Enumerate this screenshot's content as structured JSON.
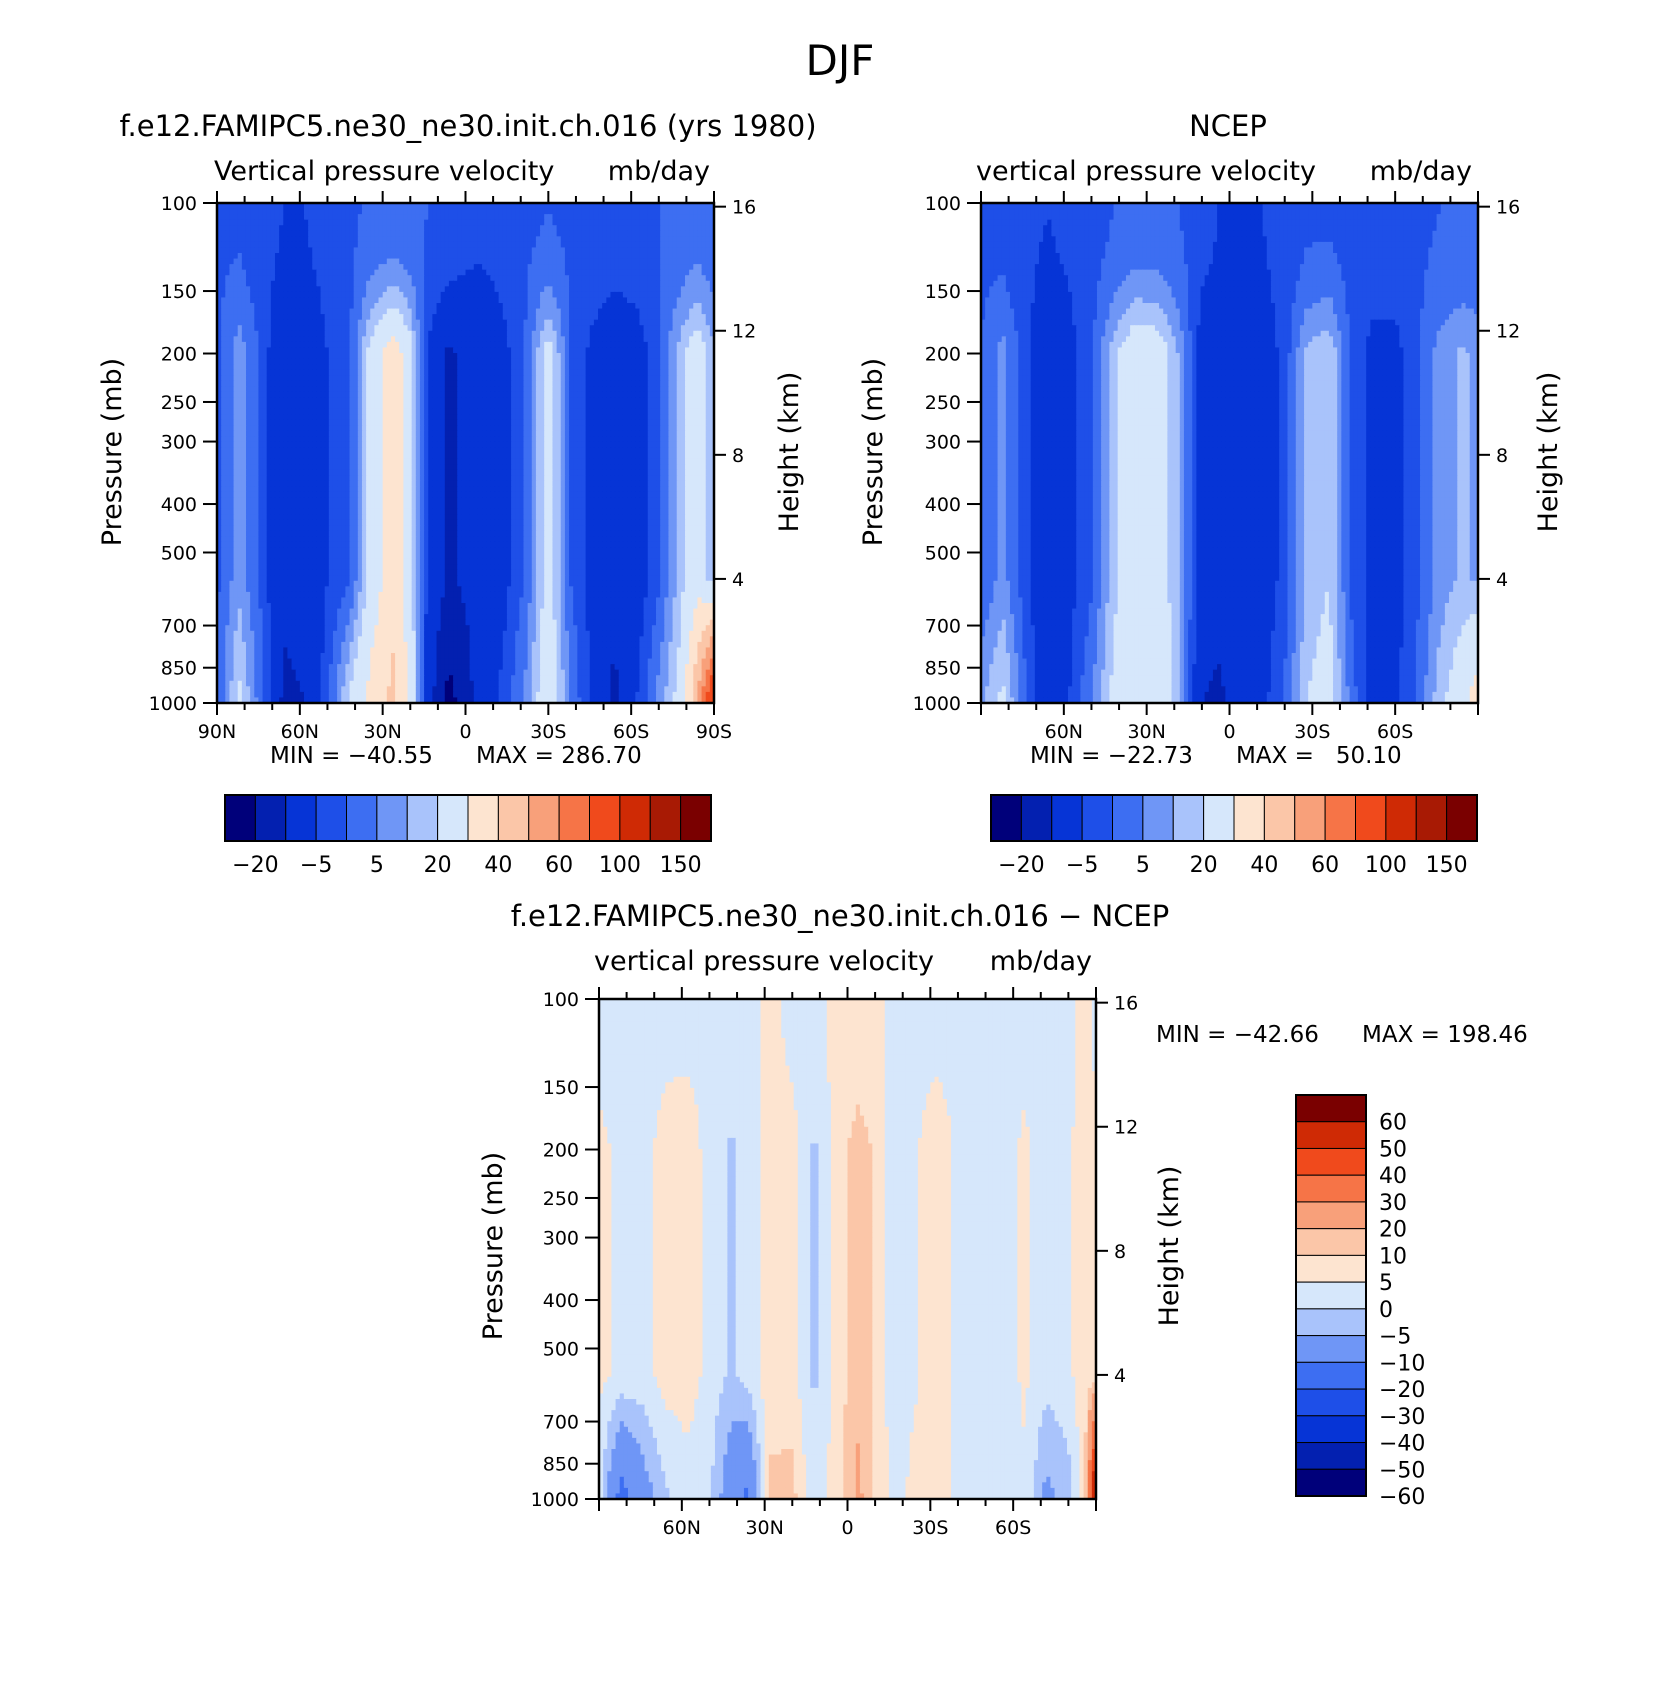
{
  "figure": {
    "title": "DJF",
    "colors": {
      "abs_palette": [
        "#00007a",
        "#0320b0",
        "#0634d6",
        "#1e4fe8",
        "#3d6ef2",
        "#6f96f6",
        "#a9c3fb",
        "#d6e7fb",
        "#fde4d0",
        "#fbc6a8",
        "#f8a07a",
        "#f67447",
        "#f04a1c",
        "#cf2a05",
        "#a81a04",
        "#7a0000"
      ],
      "diff_palette": [
        "#00007a",
        "#0320b0",
        "#0634d6",
        "#1e4fe8",
        "#3d6ef2",
        "#6f96f6",
        "#a9c3fb",
        "#d6e7fb",
        "#fde4d0",
        "#fbc6a8",
        "#f8a07a",
        "#f67447",
        "#f04a1c",
        "#cf2a05",
        "#7a0000"
      ]
    }
  },
  "chart_data": [
    {
      "type": "heatmap",
      "title": "f.e12.FAMIPC5.ne30_ne30.init.ch.016 (yrs 1980)",
      "subtitle_left": "Vertical pressure velocity",
      "subtitle_right": "mb/day",
      "ylabel": "Pressure (mb)",
      "y2label": "Height (km)",
      "x_ticks": [
        "90N",
        "60N",
        "30N",
        "0",
        "30S",
        "60S",
        "90S"
      ],
      "x_range": [
        90,
        -90
      ],
      "y_ticks": [
        "100",
        "150",
        "200",
        "250",
        "300",
        "400",
        "500",
        "700",
        "850",
        "1000"
      ],
      "y_range": [
        1000,
        100
      ],
      "y_scale": "log",
      "y2_ticks": [
        "16",
        "12",
        "8",
        "4"
      ],
      "min_label": "MIN = −40.55",
      "max_label": "MAX = 286.70",
      "min": -40.55,
      "max": 286.7,
      "colorbar_orientation": "horizontal",
      "colorbar_labels": [
        "−20",
        "−5",
        "5",
        "20",
        "40",
        "60",
        "100",
        "150"
      ],
      "levels": [
        -30,
        -20,
        -10,
        -5,
        0,
        5,
        10,
        20,
        30,
        40,
        50,
        60,
        80,
        100,
        150
      ],
      "profile": [
        {
          "lat": 90,
          "top": -6,
          "mid": -6,
          "low": -5
        },
        {
          "lat": 82,
          "top": -6,
          "mid": 3,
          "low": 12
        },
        {
          "lat": 74,
          "top": -8,
          "mid": -6,
          "low": -3
        },
        {
          "lat": 66,
          "top": -10,
          "mid": -18,
          "low": -22
        },
        {
          "lat": 58,
          "top": -10,
          "mid": -16,
          "low": -20
        },
        {
          "lat": 50,
          "top": -8,
          "mid": -10,
          "low": -6
        },
        {
          "lat": 42,
          "top": -6,
          "mid": -6,
          "low": 12
        },
        {
          "lat": 34,
          "top": -4,
          "mid": 14,
          "low": 24
        },
        {
          "lat": 26,
          "top": -4,
          "mid": 26,
          "low": 33
        },
        {
          "lat": 20,
          "top": -4,
          "mid": 14,
          "low": 18
        },
        {
          "lat": 14,
          "top": -5,
          "mid": -10,
          "low": -14
        },
        {
          "lat": 6,
          "top": -5,
          "mid": -22,
          "low": -34
        },
        {
          "lat": 0,
          "top": -8,
          "mid": -18,
          "low": -24
        },
        {
          "lat": -6,
          "top": -8,
          "mid": -20,
          "low": -14
        },
        {
          "lat": -14,
          "top": -7,
          "mid": -12,
          "low": -8
        },
        {
          "lat": -22,
          "top": -6,
          "mid": -4,
          "low": 2
        },
        {
          "lat": -30,
          "top": -5,
          "mid": 14,
          "low": 18
        },
        {
          "lat": -38,
          "top": -6,
          "mid": -5,
          "low": 0
        },
        {
          "lat": -46,
          "top": -6,
          "mid": -12,
          "low": -12
        },
        {
          "lat": -54,
          "top": -6,
          "mid": -18,
          "low": -22
        },
        {
          "lat": -62,
          "top": -6,
          "mid": -14,
          "low": -10
        },
        {
          "lat": -70,
          "top": -5,
          "mid": -6,
          "low": 2
        },
        {
          "lat": -78,
          "top": -4,
          "mid": 8,
          "low": 14
        },
        {
          "lat": -84,
          "top": -3,
          "mid": 16,
          "low": 40
        },
        {
          "lat": -90,
          "top": -4,
          "mid": 6,
          "low": 80
        }
      ]
    },
    {
      "type": "heatmap",
      "title": "NCEP",
      "subtitle_left": "vertical pressure velocity",
      "subtitle_right": "mb/day",
      "ylabel": "Pressure (mb)",
      "y2label": "Height (km)",
      "x_ticks": [
        "60N",
        "30N",
        "0",
        "30S",
        "60S"
      ],
      "x_range": [
        90,
        -90
      ],
      "y_ticks": [
        "100",
        "150",
        "200",
        "250",
        "300",
        "400",
        "500",
        "700",
        "850",
        "1000"
      ],
      "y_range": [
        1000,
        100
      ],
      "y_scale": "log",
      "y2_ticks": [
        "16",
        "12",
        "8",
        "4"
      ],
      "min_label": "MIN = −22.73",
      "max_label": "MAX =   50.10",
      "min": -22.73,
      "max": 50.1,
      "colorbar_orientation": "horizontal",
      "colorbar_labels": [
        "−20",
        "−5",
        "5",
        "20",
        "40",
        "60",
        "100",
        "150"
      ],
      "levels": [
        -30,
        -20,
        -10,
        -5,
        0,
        5,
        10,
        20,
        30,
        40,
        50,
        60,
        80,
        100,
        150
      ],
      "profile": [
        {
          "lat": 90,
          "top": -6,
          "mid": -5,
          "low": 4
        },
        {
          "lat": 82,
          "top": -7,
          "mid": 2,
          "low": 12
        },
        {
          "lat": 74,
          "top": -9,
          "mid": -8,
          "low": -4
        },
        {
          "lat": 66,
          "top": -10,
          "mid": -16,
          "low": -18
        },
        {
          "lat": 58,
          "top": -9,
          "mid": -12,
          "low": -10
        },
        {
          "lat": 50,
          "top": -7,
          "mid": -6,
          "low": 0
        },
        {
          "lat": 42,
          "top": -5,
          "mid": 8,
          "low": 12
        },
        {
          "lat": 34,
          "top": -4,
          "mid": 18,
          "low": 20
        },
        {
          "lat": 26,
          "top": -4,
          "mid": 16,
          "low": 18
        },
        {
          "lat": 18,
          "top": -5,
          "mid": 4,
          "low": 6
        },
        {
          "lat": 10,
          "top": -8,
          "mid": -14,
          "low": -20
        },
        {
          "lat": 4,
          "top": -10,
          "mid": -16,
          "low": -22
        },
        {
          "lat": -4,
          "top": -10,
          "mid": -14,
          "low": -16
        },
        {
          "lat": -12,
          "top": -10,
          "mid": -14,
          "low": -12
        },
        {
          "lat": -20,
          "top": -8,
          "mid": -8,
          "low": -4
        },
        {
          "lat": -28,
          "top": -6,
          "mid": 6,
          "low": 10
        },
        {
          "lat": -36,
          "top": -6,
          "mid": 10,
          "low": 14
        },
        {
          "lat": -44,
          "top": -7,
          "mid": -6,
          "low": -2
        },
        {
          "lat": -52,
          "top": -7,
          "mid": -12,
          "low": -14
        },
        {
          "lat": -60,
          "top": -7,
          "mid": -12,
          "low": -12
        },
        {
          "lat": -68,
          "top": -6,
          "mid": -6,
          "low": -4
        },
        {
          "lat": -76,
          "top": -5,
          "mid": 2,
          "low": 8
        },
        {
          "lat": -84,
          "top": -5,
          "mid": 6,
          "low": 16
        },
        {
          "lat": -90,
          "top": -5,
          "mid": 4,
          "low": 26
        }
      ]
    },
    {
      "type": "heatmap",
      "title": "f.e12.FAMIPC5.ne30_ne30.init.ch.016 − NCEP",
      "subtitle_left": "vertical pressure velocity",
      "subtitle_right": "mb/day",
      "ylabel": "Pressure (mb)",
      "y2label": "Height (km)",
      "x_ticks": [
        "60N",
        "30N",
        "0",
        "30S",
        "60S"
      ],
      "x_range": [
        90,
        -90
      ],
      "y_ticks": [
        "100",
        "150",
        "200",
        "250",
        "300",
        "400",
        "500",
        "700",
        "850",
        "1000"
      ],
      "y_range": [
        1000,
        100
      ],
      "y_scale": "log",
      "y2_ticks": [
        "16",
        "12",
        "8",
        "4"
      ],
      "min_label": "MIN = −42.66",
      "max_label": "MAX = 198.46",
      "min": -42.66,
      "max": 198.46,
      "colorbar_orientation": "vertical",
      "colorbar_labels": [
        "60",
        "50",
        "40",
        "30",
        "20",
        "10",
        "5",
        "0",
        "−5",
        "−10",
        "−20",
        "−30",
        "−40",
        "−50",
        "−60"
      ],
      "levels": [
        -60,
        -50,
        -40,
        -30,
        -20,
        -10,
        -5,
        0,
        5,
        10,
        20,
        30,
        40,
        50,
        60
      ],
      "profile": [
        {
          "lat": 90,
          "top": -1,
          "mid": 1,
          "low": -3
        },
        {
          "lat": 82,
          "top": -1,
          "mid": -1,
          "low": -24
        },
        {
          "lat": 74,
          "top": -1,
          "mid": -2,
          "low": -14
        },
        {
          "lat": 66,
          "top": -1,
          "mid": 2,
          "low": -6
        },
        {
          "lat": 58,
          "top": -1,
          "mid": 3,
          "low": -3
        },
        {
          "lat": 50,
          "top": -1,
          "mid": -2,
          "low": -4
        },
        {
          "lat": 42,
          "top": -2,
          "mid": -6,
          "low": -16
        },
        {
          "lat": 36,
          "top": -1,
          "mid": -3,
          "low": -22
        },
        {
          "lat": 28,
          "top": 1,
          "mid": 3,
          "low": 6
        },
        {
          "lat": 20,
          "top": -1,
          "mid": 2,
          "low": 7
        },
        {
          "lat": 12,
          "top": -1,
          "mid": -6,
          "low": -4
        },
        {
          "lat": 4,
          "top": 1,
          "mid": 2,
          "low": 3
        },
        {
          "lat": -4,
          "top": 2,
          "mid": 8,
          "low": 12
        },
        {
          "lat": -10,
          "top": 1,
          "mid": 4,
          "low": 3
        },
        {
          "lat": -18,
          "top": -1,
          "mid": -4,
          "low": -2
        },
        {
          "lat": -24,
          "top": -1,
          "mid": -1,
          "low": 2
        },
        {
          "lat": -32,
          "top": -1,
          "mid": 3,
          "low": 2
        },
        {
          "lat": -40,
          "top": -1,
          "mid": -1,
          "low": -1
        },
        {
          "lat": -48,
          "top": -1,
          "mid": -1,
          "low": -1
        },
        {
          "lat": -56,
          "top": -1,
          "mid": -3,
          "low": -5
        },
        {
          "lat": -64,
          "top": -1,
          "mid": 1,
          "low": -1
        },
        {
          "lat": -72,
          "top": -1,
          "mid": -3,
          "low": -12
        },
        {
          "lat": -80,
          "top": -1,
          "mid": -1,
          "low": -8
        },
        {
          "lat": -86,
          "top": 1,
          "mid": 3,
          "low": 4
        },
        {
          "lat": -90,
          "top": -1,
          "mid": 2,
          "low": 60
        }
      ]
    }
  ]
}
